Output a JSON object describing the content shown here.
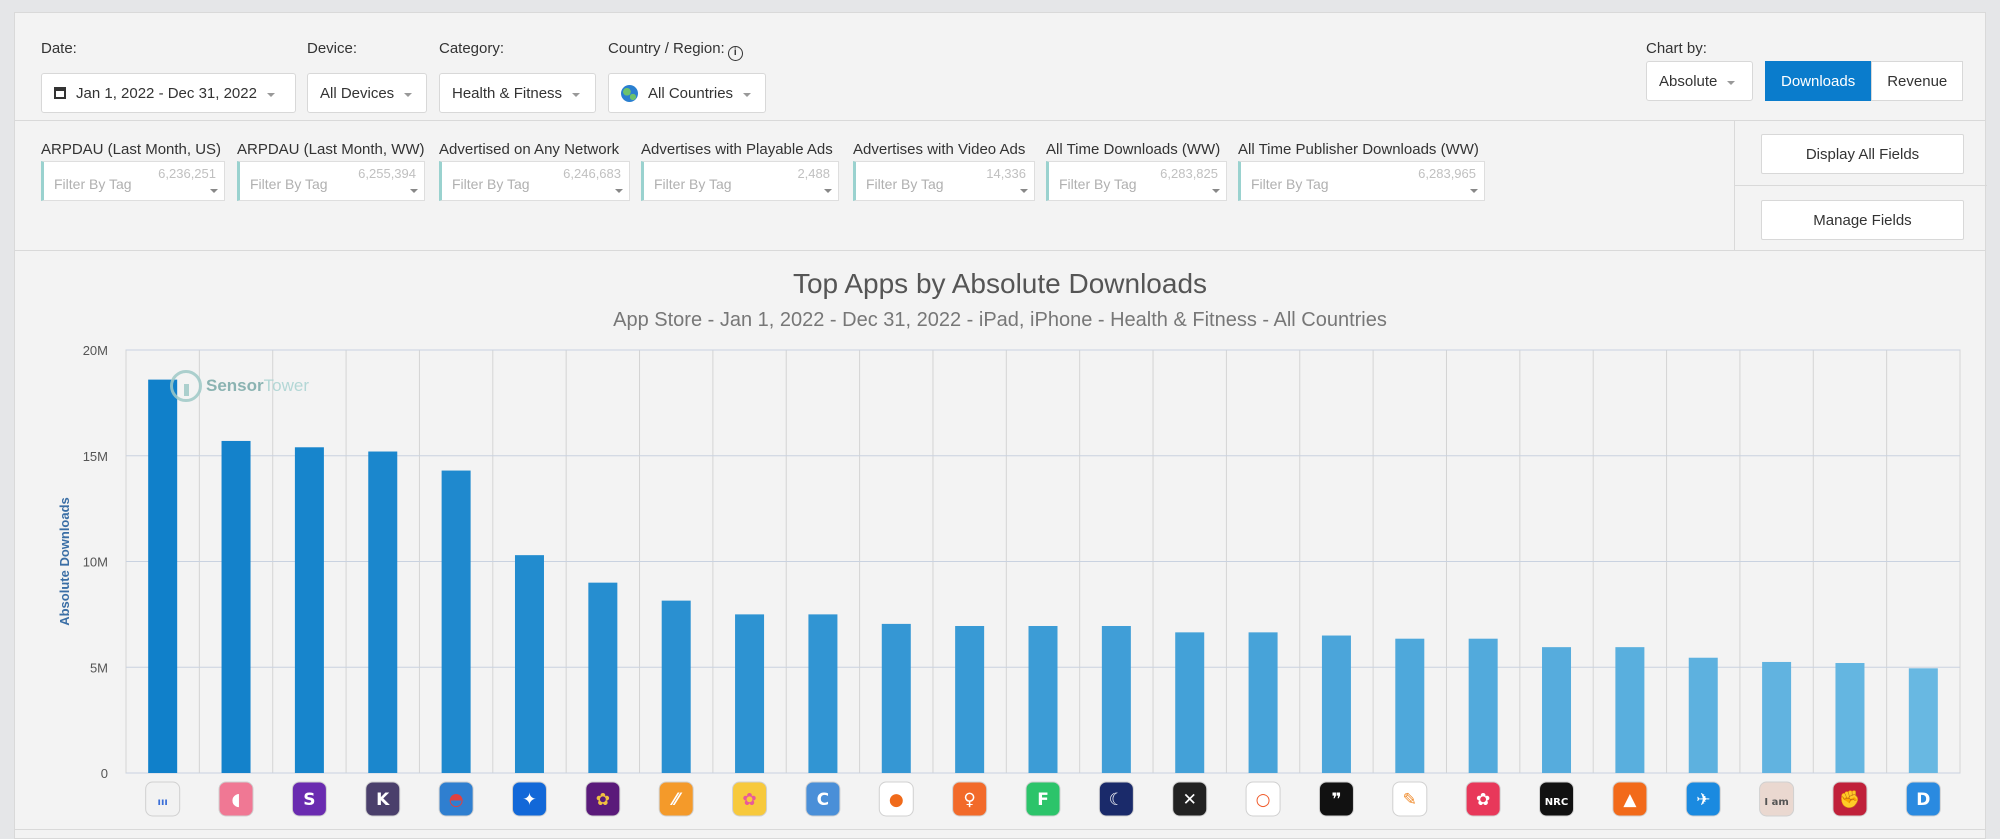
{
  "filters": {
    "date": {
      "label": "Date:",
      "value": "Jan 1, 2022 - Dec 31, 2022"
    },
    "device": {
      "label": "Device:",
      "value": "All Devices"
    },
    "category": {
      "label": "Category:",
      "value": "Health & Fitness"
    },
    "country": {
      "label": "Country / Region:",
      "value": "All Countries"
    }
  },
  "chart_by": {
    "label": "Chart by:",
    "mode": "Absolute",
    "options": [
      "Downloads",
      "Revenue"
    ],
    "active": "Downloads"
  },
  "tag_filters": [
    {
      "label": "ARPDAU (Last Month, US)",
      "placeholder": "Filter By Tag",
      "count": "6,236,251"
    },
    {
      "label": "ARPDAU (Last Month, WW)",
      "placeholder": "Filter By Tag",
      "count": "6,255,394"
    },
    {
      "label": "Advertised on Any Network",
      "placeholder": "Filter By Tag",
      "count": "6,246,683"
    },
    {
      "label": "Advertises with Playable Ads",
      "placeholder": "Filter By Tag",
      "count": "2,488"
    },
    {
      "label": "Advertises with Video Ads",
      "placeholder": "Filter By Tag",
      "count": "14,336"
    },
    {
      "label": "All Time Downloads (WW)",
      "placeholder": "Filter By Tag",
      "count": "6,283,825"
    },
    {
      "label": "All Time Publisher Downloads (WW)",
      "placeholder": "Filter By Tag",
      "count": "6,283,965"
    }
  ],
  "side_buttons": {
    "display_all": "Display All Fields",
    "manage": "Manage Fields"
  },
  "watermark": {
    "brand_a": "Sensor",
    "brand_b": "Tower"
  },
  "chart_data": {
    "type": "bar",
    "title": "Top Apps by Absolute Downloads",
    "subtitle": "App Store - Jan 1, 2022 - Dec 31, 2022 - iPad, iPhone - Health & Fitness - All Countries",
    "ylabel": "Absolute Downloads",
    "xlabel": "",
    "ylim": [
      0,
      20000000
    ],
    "yticks": [
      {
        "value": 0,
        "label": "0"
      },
      {
        "value": 5000000,
        "label": "5M"
      },
      {
        "value": 10000000,
        "label": "10M"
      },
      {
        "value": 15000000,
        "label": "15M"
      },
      {
        "value": 20000000,
        "label": "20M"
      }
    ],
    "grid": true,
    "legend": "none",
    "values": [
      18600000,
      15700000,
      15400000,
      15200000,
      14300000,
      10300000,
      9000000,
      8150000,
      7500000,
      7500000,
      7050000,
      6950000,
      6950000,
      6950000,
      6650000,
      6650000,
      6500000,
      6350000,
      6350000,
      5950000,
      5950000,
      5450000,
      5250000,
      5200000,
      4950000
    ],
    "app_icons": [
      {
        "name": "app-icon-1",
        "bg": "#f2f2f2",
        "fg": "#3b6fd8",
        "glyph": "ııı"
      },
      {
        "name": "app-icon-2",
        "bg": "#f07894",
        "fg": "#ffffff",
        "glyph": "◖"
      },
      {
        "name": "app-icon-3",
        "bg": "#6a2bb0",
        "fg": "#ffffff",
        "glyph": "S"
      },
      {
        "name": "app-icon-4",
        "bg": "#4a3f6b",
        "fg": "#ffffff",
        "glyph": "K"
      },
      {
        "name": "app-icon-5",
        "bg": "#2f7fd0",
        "fg": "#e04040",
        "glyph": "◓"
      },
      {
        "name": "app-icon-6",
        "bg": "#1268d8",
        "fg": "#ffffff",
        "glyph": "✦"
      },
      {
        "name": "app-icon-7",
        "bg": "#5a1a7a",
        "fg": "#f0c040",
        "glyph": "✿"
      },
      {
        "name": "app-icon-8",
        "bg": "#f49a2a",
        "fg": "#ffffff",
        "glyph": "⁄⁄"
      },
      {
        "name": "app-icon-9",
        "bg": "#f7c93c",
        "fg": "#e85a9a",
        "glyph": "✿"
      },
      {
        "name": "app-icon-10",
        "bg": "#4a8fd8",
        "fg": "#ffffff",
        "glyph": "C"
      },
      {
        "name": "app-icon-11",
        "bg": "#ffffff",
        "fg": "#f06a1a",
        "glyph": "●"
      },
      {
        "name": "app-icon-12",
        "bg": "#f26a2a",
        "fg": "#ffffff",
        "glyph": "♀"
      },
      {
        "name": "app-icon-13",
        "bg": "#2cc46a",
        "fg": "#ffffff",
        "glyph": "F"
      },
      {
        "name": "app-icon-14",
        "bg": "#1a2a6a",
        "fg": "#ffffff",
        "glyph": "☾"
      },
      {
        "name": "app-icon-15",
        "bg": "#222222",
        "fg": "#ffffff",
        "glyph": "✕"
      },
      {
        "name": "app-icon-16",
        "bg": "#ffffff",
        "fg": "#f05a2a",
        "glyph": "○"
      },
      {
        "name": "app-icon-17",
        "bg": "#111111",
        "fg": "#ffffff",
        "glyph": "❞"
      },
      {
        "name": "app-icon-18",
        "bg": "#ffffff",
        "fg": "#f08a2a",
        "glyph": "✎"
      },
      {
        "name": "app-icon-19",
        "bg": "#e8385a",
        "fg": "#ffffff",
        "glyph": "✿"
      },
      {
        "name": "app-icon-20",
        "bg": "#111111",
        "fg": "#ffffff",
        "glyph": "NRC"
      },
      {
        "name": "app-icon-21",
        "bg": "#f26a1a",
        "fg": "#ffffff",
        "glyph": "▲"
      },
      {
        "name": "app-icon-22",
        "bg": "#1a8ae0",
        "fg": "#ffffff",
        "glyph": "✈"
      },
      {
        "name": "app-icon-23",
        "bg": "#ead8d0",
        "fg": "#555555",
        "glyph": "I am"
      },
      {
        "name": "app-icon-24",
        "bg": "#c0203a",
        "fg": "#ffffff",
        "glyph": "✊"
      },
      {
        "name": "app-icon-25",
        "bg": "#2a8ae0",
        "fg": "#ffffff",
        "glyph": "D"
      }
    ]
  }
}
